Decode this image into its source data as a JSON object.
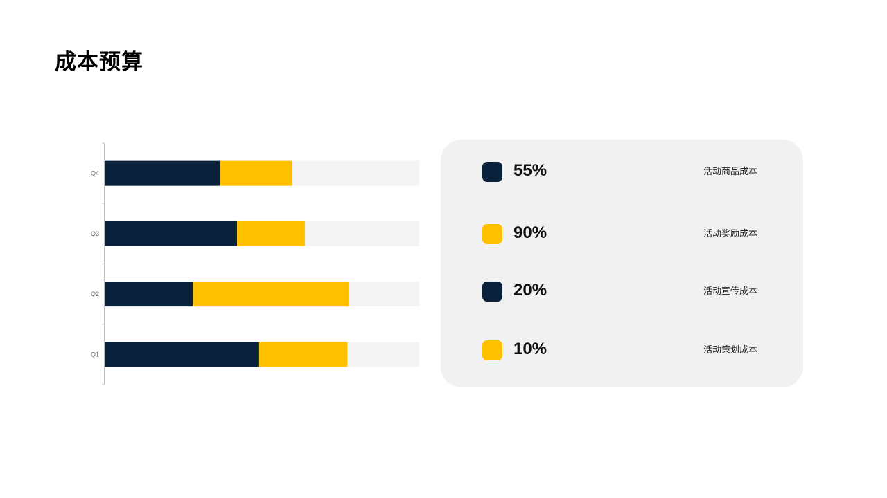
{
  "page": {
    "title": "成本预算"
  },
  "colors": {
    "navy": "#0a213b",
    "yellow": "#ffc000",
    "track": "#f4f4f4",
    "panel": "#f1f1f1"
  },
  "chart_data": {
    "type": "bar",
    "orientation": "horizontal",
    "stacked": true,
    "categories": [
      "Q1",
      "Q2",
      "Q3",
      "Q4"
    ],
    "series": [
      {
        "color": "#0a213b",
        "values": [
          49,
          28,
          42,
          36.5
        ]
      },
      {
        "color": "#ffc000",
        "values": [
          28,
          49.5,
          21.5,
          23
        ]
      }
    ],
    "xlim": [
      0,
      100
    ],
    "grid": false,
    "legend": "none"
  },
  "legend_panel": {
    "items": [
      {
        "value": "55%",
        "label": "活动商品成本",
        "color": "#0a213b"
      },
      {
        "value": "90%",
        "label": "活动奖励成本",
        "color": "#ffc000"
      },
      {
        "value": "20%",
        "label": "活动宣传成本",
        "color": "#0a213b"
      },
      {
        "value": "10%",
        "label": "活动策划成本",
        "color": "#ffc000"
      }
    ]
  }
}
